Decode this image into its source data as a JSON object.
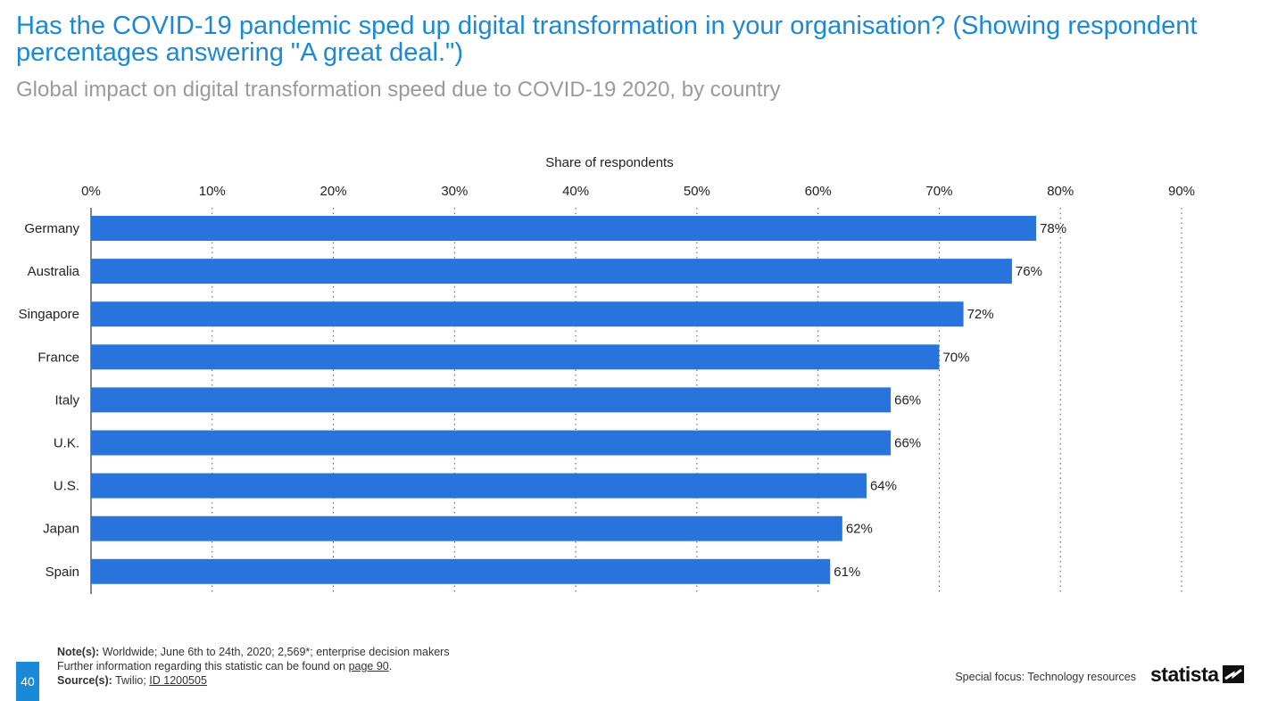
{
  "header": {
    "title": "Has the COVID-19 pandemic sped up digital transformation in your organisation? (Showing respondent percentages answering \"A great deal.\")",
    "subtitle": "Global impact on digital transformation speed due to COVID-19 2020, by country"
  },
  "chart_data": {
    "type": "bar",
    "orientation": "horizontal",
    "xlabel": "Share of respondents",
    "xlim": [
      0,
      90
    ],
    "xticks": [
      "0%",
      "10%",
      "20%",
      "30%",
      "40%",
      "50%",
      "60%",
      "70%",
      "80%",
      "90%"
    ],
    "categories": [
      "Germany",
      "Australia",
      "Singapore",
      "France",
      "Italy",
      "U.K.",
      "U.S.",
      "Japan",
      "Spain"
    ],
    "values": [
      78,
      76,
      72,
      70,
      66,
      66,
      64,
      62,
      61
    ],
    "value_labels": [
      "78%",
      "76%",
      "72%",
      "70%",
      "66%",
      "66%",
      "64%",
      "62%",
      "61%"
    ],
    "grid": "vertical dotted",
    "axis_position": "top",
    "bar_color": "#2874dc"
  },
  "footer": {
    "notes_label": "Note(s):",
    "notes_text": " Worldwide; June 6th to 24th, 2020; 2,569*; enterprise decision makers",
    "further_info": "Further information regarding this statistic can be found on ",
    "further_link": "page 90",
    "further_end": ".",
    "source_label": "Source(s):",
    "source_text": " Twilio; ",
    "source_link": "ID 1200505",
    "page_number": "40",
    "special_focus": "Special focus: Technology resources",
    "brand": "statista"
  }
}
